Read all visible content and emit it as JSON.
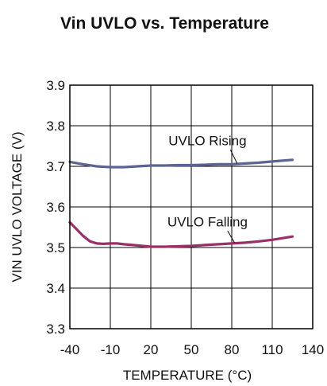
{
  "chart_data": {
    "type": "line",
    "title": "Vin UVLO vs. Temperature",
    "xlabel": "TEMPERATURE (°C)",
    "ylabel": "VIN UVLO VOLTAGE (V)",
    "xlim": [
      -40,
      140
    ],
    "ylim": [
      3.3,
      3.9
    ],
    "x_ticks": [
      "-40",
      "-10",
      "20",
      "50",
      "80",
      "110",
      "140"
    ],
    "y_ticks": [
      "3.3",
      "3.4",
      "3.5",
      "3.6",
      "3.7",
      "3.8",
      "3.9"
    ],
    "grid": true,
    "series": [
      {
        "name": "UVLO Rising",
        "color": "#5b6495",
        "x": [
          -40,
          -30,
          -20,
          -10,
          0,
          10,
          20,
          30,
          40,
          50,
          60,
          70,
          80,
          90,
          100,
          110,
          125
        ],
        "y": [
          3.711,
          3.705,
          3.7,
          3.698,
          3.698,
          3.7,
          3.702,
          3.702,
          3.703,
          3.703,
          3.704,
          3.705,
          3.705,
          3.707,
          3.709,
          3.712,
          3.716
        ]
      },
      {
        "name": "UVLO Falling",
        "color": "#9a2f66",
        "x": [
          -40,
          -35,
          -30,
          -25,
          -20,
          -15,
          -10,
          -5,
          0,
          10,
          20,
          30,
          40,
          50,
          60,
          70,
          80,
          90,
          100,
          110,
          125
        ],
        "y": [
          3.562,
          3.545,
          3.528,
          3.515,
          3.51,
          3.509,
          3.51,
          3.51,
          3.508,
          3.505,
          3.502,
          3.502,
          3.503,
          3.504,
          3.506,
          3.508,
          3.51,
          3.512,
          3.515,
          3.519,
          3.527
        ]
      }
    ]
  }
}
